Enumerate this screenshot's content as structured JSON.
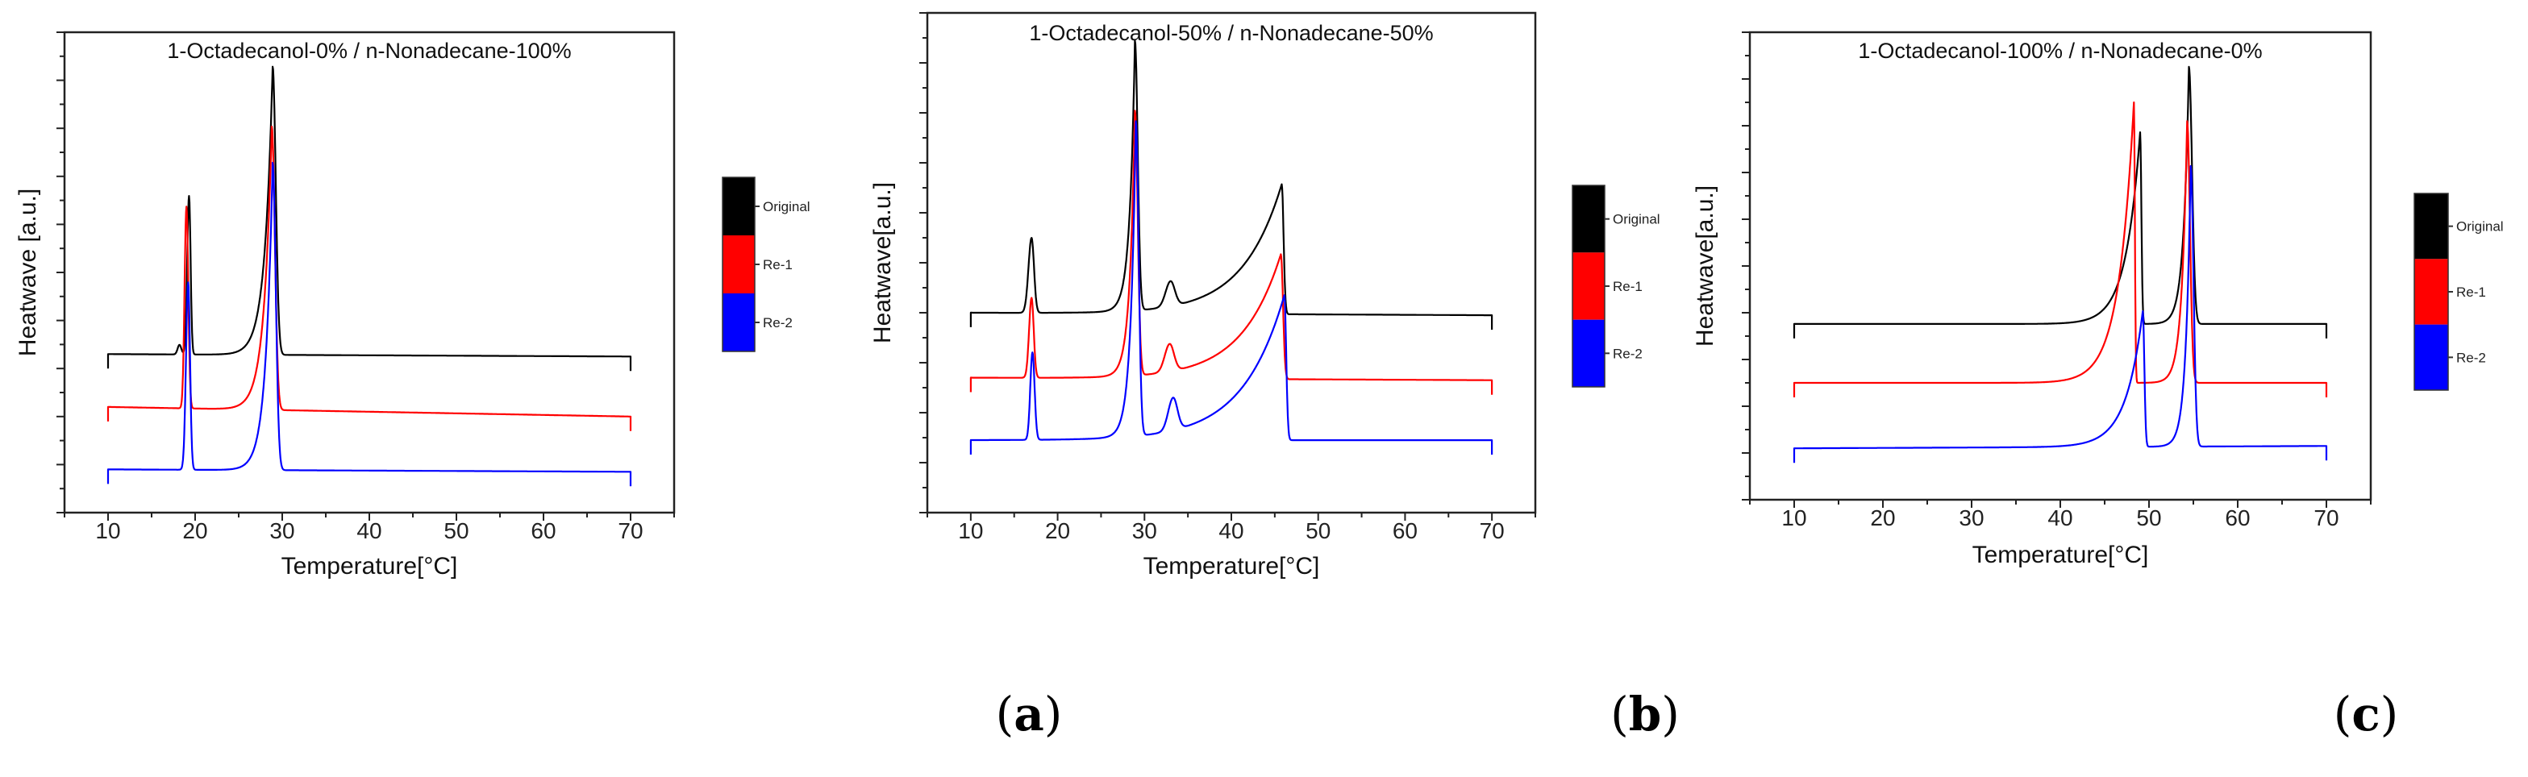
{
  "chart_data": [
    {
      "type": "line",
      "title": "1-Octadecanol-0% / n-Nonadecane-100%",
      "xlabel": "Temperature[°C]",
      "ylabel": "Heatwave [a.u.]",
      "xlim": [
        5,
        75
      ],
      "ylim": [
        0,
        10
      ],
      "xticks": [
        "10",
        "20",
        "30",
        "40",
        "50",
        "60",
        "70"
      ],
      "x_range": [
        10,
        70
      ],
      "legend": [
        "Original",
        "Re-1",
        "Re-2"
      ],
      "legend_placement": "right",
      "series": [
        {
          "name": "Original",
          "color": "#000000",
          "baseline": [
            3.3,
            3.25
          ],
          "peaks": [
            [
              18.2,
              0.2,
              0.3,
              0.3,
              0
            ],
            [
              19.3,
              3.3,
              0.3,
              0.25,
              0
            ],
            [
              28.9,
              6.0,
              0.9,
              0.5,
              1
            ]
          ]
        },
        {
          "name": "Re-1",
          "color": "#ff0000",
          "baseline": [
            2.2,
            2.0
          ],
          "peaks": [
            [
              19.0,
              4.2,
              0.3,
              0.3,
              0
            ],
            [
              28.8,
              5.9,
              0.9,
              0.5,
              1
            ]
          ]
        },
        {
          "name": "Re-2",
          "color": "#0000ff",
          "baseline": [
            0.9,
            0.85
          ],
          "peaks": [
            [
              19.2,
              3.9,
              0.35,
              0.3,
              0
            ],
            [
              28.9,
              6.4,
              0.8,
              0.5,
              1
            ]
          ]
        }
      ]
    },
    {
      "type": "line",
      "title": "1-Octadecanol-50% / n-Nonadecane-50%",
      "xlabel": "Temperature[°C]",
      "ylabel": "Heatwave[a.u.]",
      "xlim": [
        5,
        75
      ],
      "ylim": [
        0,
        10
      ],
      "xticks": [
        "10",
        "20",
        "30",
        "40",
        "50",
        "60",
        "70"
      ],
      "x_range": [
        10,
        70
      ],
      "legend": [
        "Original",
        "Re-1",
        "Re-2"
      ],
      "legend_placement": "right",
      "series": [
        {
          "name": "Original",
          "color": "#000000",
          "baseline": [
            4.0,
            3.95
          ],
          "peaks": [
            [
              17.0,
              1.5,
              0.5,
              0.4,
              0
            ],
            [
              28.9,
              5.4,
              0.6,
              0.45,
              1
            ],
            [
              33.0,
              0.5,
              0.8,
              0.7,
              0
            ],
            [
              45.8,
              2.6,
              4.5,
              0.3,
              1
            ]
          ]
        },
        {
          "name": "Re-1",
          "color": "#ff0000",
          "baseline": [
            2.7,
            2.65
          ],
          "peaks": [
            [
              17.0,
              1.6,
              0.4,
              0.35,
              0
            ],
            [
              28.9,
              5.3,
              0.6,
              0.45,
              1
            ],
            [
              32.9,
              0.55,
              0.8,
              0.7,
              0
            ],
            [
              45.7,
              2.5,
              4.5,
              0.35,
              1
            ]
          ]
        },
        {
          "name": "Re-2",
          "color": "#0000ff",
          "baseline": [
            1.45,
            1.45
          ],
          "peaks": [
            [
              17.1,
              1.75,
              0.35,
              0.35,
              0
            ],
            [
              29.0,
              6.3,
              0.6,
              0.45,
              1
            ],
            [
              33.3,
              0.65,
              0.8,
              0.7,
              0
            ],
            [
              46.1,
              2.9,
              4.8,
              0.3,
              1
            ]
          ]
        }
      ]
    },
    {
      "type": "line",
      "title": "1-Octadecanol-100% / n-Nonadecane-0%",
      "xlabel": "Temperature[°C]",
      "ylabel": "Heatwave[a.u.]",
      "xlim": [
        5,
        75
      ],
      "ylim": [
        0,
        10
      ],
      "xticks": [
        "10",
        "20",
        "30",
        "40",
        "50",
        "60",
        "70"
      ],
      "x_range": [
        10,
        70
      ],
      "legend": [
        "Original",
        "Re-1",
        "Re-2"
      ],
      "legend_placement": "right",
      "series": [
        {
          "name": "Original",
          "color": "#000000",
          "baseline": [
            3.76,
            3.76
          ],
          "peaks": [
            [
              49.0,
              4.1,
              1.6,
              0.2,
              1
            ],
            [
              54.5,
              5.5,
              0.6,
              0.5,
              1
            ]
          ]
        },
        {
          "name": "Re-1",
          "color": "#ff0000",
          "baseline": [
            2.5,
            2.5
          ],
          "peaks": [
            [
              48.3,
              6.0,
              1.7,
              0.15,
              1
            ],
            [
              54.3,
              5.6,
              0.6,
              0.45,
              1
            ]
          ]
        },
        {
          "name": "Re-2",
          "color": "#0000ff",
          "baseline": [
            1.1,
            1.15
          ],
          "peaks": [
            [
              49.3,
              2.9,
              1.9,
              0.25,
              1
            ],
            [
              54.7,
              6.0,
              0.55,
              0.45,
              1
            ]
          ]
        }
      ]
    }
  ],
  "subfigure_labels": [
    "a",
    "b",
    "c"
  ]
}
